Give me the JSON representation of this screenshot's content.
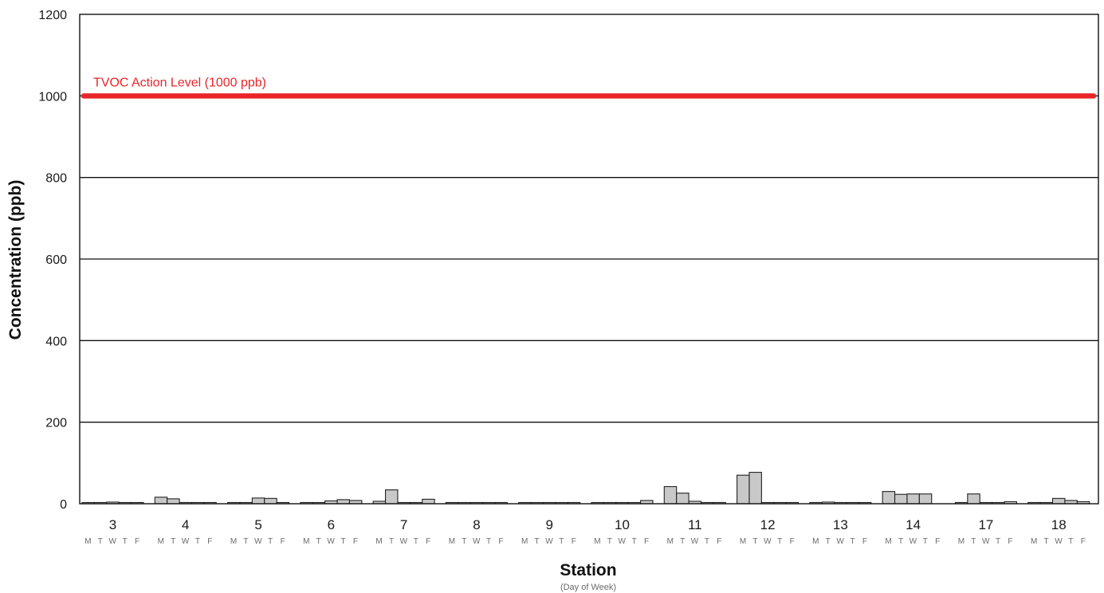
{
  "chart_data": {
    "type": "bar",
    "xlabel": "Station",
    "xlabel_sub": "(Day of Week)",
    "ylabel": "Concentration (ppb)",
    "ylim": [
      0,
      1200
    ],
    "yticks": [
      0,
      200,
      400,
      600,
      800,
      1000,
      1200
    ],
    "grid": true,
    "days": [
      "M",
      "T",
      "W",
      "T",
      "F"
    ],
    "categories": [
      "3",
      "4",
      "5",
      "6",
      "7",
      "8",
      "9",
      "10",
      "11",
      "12",
      "13",
      "14",
      "17",
      "18"
    ],
    "values": [
      [
        3,
        3,
        4,
        3,
        3
      ],
      [
        16,
        12,
        3,
        3,
        3
      ],
      [
        3,
        3,
        14,
        13,
        3
      ],
      [
        3,
        3,
        7,
        10,
        8
      ],
      [
        6,
        34,
        3,
        3,
        11
      ],
      [
        3,
        3,
        3,
        3,
        3
      ],
      [
        3,
        3,
        3,
        3,
        3
      ],
      [
        3,
        3,
        3,
        3,
        8
      ],
      [
        42,
        26,
        6,
        3,
        3
      ],
      [
        70,
        77,
        3,
        3,
        3
      ],
      [
        3,
        4,
        3,
        3,
        3
      ],
      [
        30,
        23,
        24,
        24,
        0
      ],
      [
        3,
        24,
        3,
        3,
        5
      ],
      [
        3,
        3,
        13,
        8,
        5
      ]
    ],
    "bar_color": "#c8c8c8",
    "reference_line": {
      "value": 1000,
      "label": "TVOC Action Level (1000 ppb)",
      "color": "#e8262a"
    }
  }
}
